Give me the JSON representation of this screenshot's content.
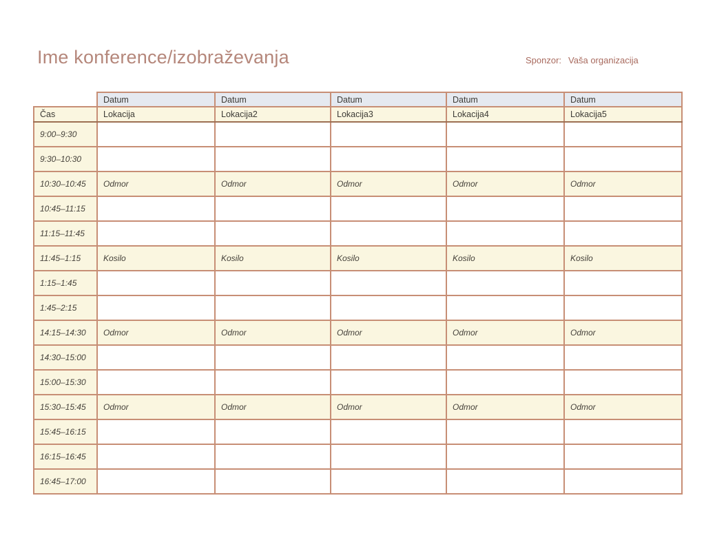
{
  "page": {
    "title": "Ime konference/izobraževanja",
    "sponsor_label": "Sponzor:",
    "sponsor_value": "Vaša organizacija"
  },
  "colors": {
    "title_text": "#b5877b",
    "sponsor_text": "#a86a5e",
    "grid_border": "#c78e75",
    "header_rule": "#9c6f52",
    "date_header_bg": "#e5e9f0",
    "cream_bg": "#faf6e0",
    "cell_text": "#45413a"
  },
  "table": {
    "date_headers": [
      "Datum",
      "Datum",
      "Datum",
      "Datum",
      "Datum"
    ],
    "time_header": "Čas",
    "location_headers": [
      "Lokacija",
      "Lokacija2",
      "Lokacija3",
      "Lokacija4",
      "Lokacija5"
    ],
    "rows": [
      {
        "time": "9:00–9:30",
        "type": "normal",
        "cells": [
          "",
          "",
          "",
          "",
          ""
        ]
      },
      {
        "time": "9:30–10:30",
        "type": "normal",
        "cells": [
          "",
          "",
          "",
          "",
          ""
        ]
      },
      {
        "time": "10:30–10:45",
        "type": "break",
        "cells": [
          "Odmor",
          "Odmor",
          "Odmor",
          "Odmor",
          "Odmor"
        ]
      },
      {
        "time": "10:45–11:15",
        "type": "normal",
        "cells": [
          "",
          "",
          "",
          "",
          ""
        ]
      },
      {
        "time": "11:15–11:45",
        "type": "normal",
        "cells": [
          "",
          "",
          "",
          "",
          ""
        ]
      },
      {
        "time": "11:45–1:15",
        "type": "break",
        "cells": [
          "Kosilo",
          "Kosilo",
          "Kosilo",
          "Kosilo",
          "Kosilo"
        ]
      },
      {
        "time": "1:15–1:45",
        "type": "normal",
        "cells": [
          "",
          "",
          "",
          "",
          ""
        ]
      },
      {
        "time": "1:45–2:15",
        "type": "normal",
        "cells": [
          "",
          "",
          "",
          "",
          ""
        ]
      },
      {
        "time": "14:15–14:30",
        "type": "break",
        "cells": [
          "Odmor",
          "Odmor",
          "Odmor",
          "Odmor",
          "Odmor"
        ]
      },
      {
        "time": "14:30–15:00",
        "type": "normal",
        "cells": [
          "",
          "",
          "",
          "",
          ""
        ]
      },
      {
        "time": "15:00–15:30",
        "type": "normal",
        "cells": [
          "",
          "",
          "",
          "",
          ""
        ]
      },
      {
        "time": "15:30–15:45",
        "type": "break",
        "cells": [
          "Odmor",
          "Odmor",
          "Odmor",
          "Odmor",
          "Odmor"
        ]
      },
      {
        "time": "15:45–16:15",
        "type": "normal",
        "cells": [
          "",
          "",
          "",
          "",
          ""
        ]
      },
      {
        "time": "16:15–16:45",
        "type": "normal",
        "cells": [
          "",
          "",
          "",
          "",
          ""
        ]
      },
      {
        "time": "16:45–17:00",
        "type": "normal",
        "cells": [
          "",
          "",
          "",
          "",
          ""
        ]
      }
    ]
  }
}
